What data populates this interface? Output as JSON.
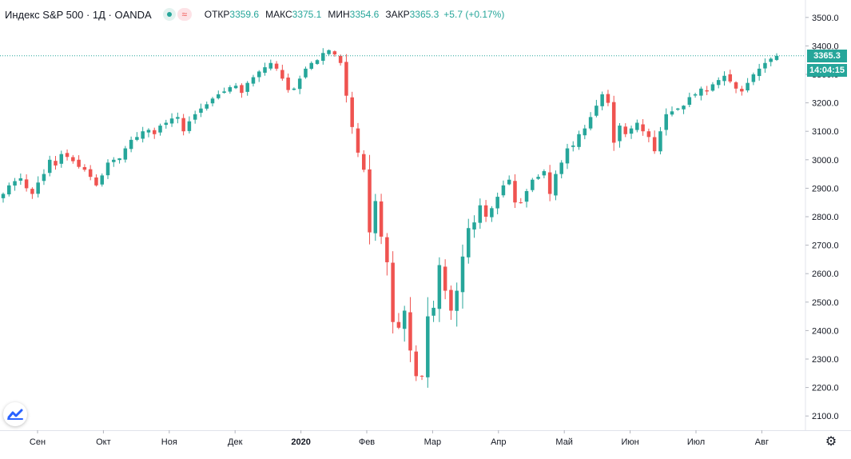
{
  "legend": {
    "symbol": "Индекс S&P 500 · 1Д · OANDA",
    "open_label": "ОТКР",
    "open_value": "3359.6",
    "high_label": "МАКС",
    "high_value": "3375.1",
    "low_label": "МИН",
    "low_value": "3354.6",
    "close_label": "ЗАКР",
    "close_value": "3365.3",
    "change": "+5.7 (+0.17%)"
  },
  "price_tag": {
    "price": "3365.3",
    "countdown": "14:04:15"
  },
  "icons": {
    "logo": "tradingview-logo-icon",
    "settings": "gear-icon",
    "status": "market-open-dot-icon",
    "indicator": "wave-indicator-icon"
  },
  "colors": {
    "up": "#26a69a",
    "down": "#ef5350",
    "price_line": "#26a69a"
  },
  "chart_data": {
    "type": "candlestick",
    "title": "Индекс S&P 500 · 1Д · OANDA",
    "ylim": [
      2050,
      3550
    ],
    "y_ticks": [
      "2100.0",
      "2200.0",
      "2300.0",
      "2400.0",
      "2500.0",
      "2600.0",
      "2700.0",
      "2800.0",
      "2900.0",
      "3000.0",
      "3100.0",
      "3200.0",
      "3300.0",
      "3400.0",
      "3500.0"
    ],
    "x_ticks": [
      "Сен",
      "Окт",
      "Ноя",
      "Дек",
      "2020",
      "Фев",
      "Мар",
      "Апр",
      "Май",
      "Июн",
      "Июл",
      "Авг"
    ],
    "last_price": 3365.3,
    "series_close": [
      2880,
      2910,
      2925,
      2935,
      2900,
      2880,
      2920,
      2950,
      3000,
      2980,
      3020,
      3010,
      2995,
      2975,
      2965,
      2940,
      2910,
      2945,
      2990,
      3000,
      3005,
      3040,
      3070,
      3080,
      3100,
      3105,
      3090,
      3120,
      3130,
      3145,
      3150,
      3100,
      3135,
      3160,
      3180,
      3195,
      3215,
      3230,
      3240,
      3255,
      3260,
      3235,
      3270,
      3290,
      3310,
      3325,
      3340,
      3320,
      3285,
      3245,
      3250,
      3285,
      3320,
      3340,
      3350,
      3375,
      3385,
      3370,
      3340,
      3225,
      3115,
      3025,
      2965,
      2745,
      2855,
      2730,
      2640,
      2430,
      2410,
      2470,
      2330,
      2240,
      2240,
      2450,
      2480,
      2630,
      2540,
      2470,
      2540,
      2660,
      2760,
      2780,
      2840,
      2800,
      2830,
      2870,
      2910,
      2930,
      2850,
      2850,
      2890,
      2930,
      2940,
      2960,
      2880,
      2950,
      2990,
      3040,
      3050,
      3090,
      3110,
      3150,
      3190,
      3230,
      3200,
      3060,
      3120,
      3090,
      3110,
      3130,
      3100,
      3080,
      3030,
      3100,
      3160,
      3170,
      3180,
      3190,
      3220,
      3230,
      3250,
      3240,
      3265,
      3280,
      3295,
      3275,
      3250,
      3240,
      3270,
      3300,
      3320,
      3340,
      3355,
      3365
    ]
  }
}
